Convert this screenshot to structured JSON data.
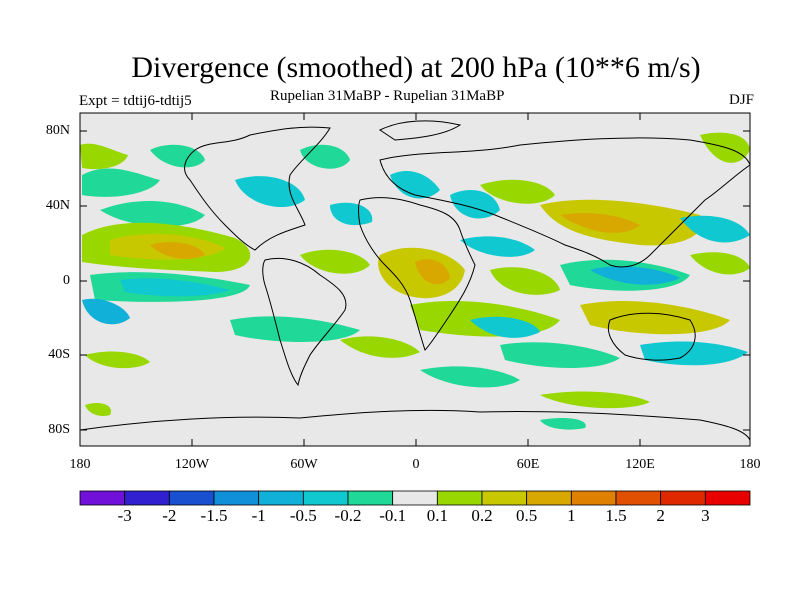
{
  "title": "Divergence (smoothed) at 200 hPa (10**6 m/s)",
  "subtitle": "Rupelian  31MaBP - Rupelian  31MaBP",
  "experiment": "Expt = tdtij6-tdtij5",
  "season": "DJF",
  "lat_labels": [
    "80N",
    "40N",
    "0",
    "40S",
    "80S"
  ],
  "lon_labels": [
    "180",
    "120W",
    "60W",
    "0",
    "60E",
    "120E",
    "180"
  ],
  "colorbar": {
    "labels": [
      "-3",
      "-2",
      "-1.5",
      "-1",
      "-0.5",
      "-0.2",
      "-0.1",
      "0.1",
      "0.2",
      "0.5",
      "1",
      "1.5",
      "2",
      "3"
    ],
    "colors": [
      "#7010d8",
      "#3020d0",
      "#1850d0",
      "#1090d8",
      "#10b0d8",
      "#10c8d0",
      "#20d898",
      "#e8e8e8",
      "#98d800",
      "#c8c800",
      "#d8a800",
      "#e08000",
      "#e05000",
      "#e02800",
      "#e80000"
    ]
  },
  "map": {
    "background": "#e8e8e8",
    "features": [
      "continent outlines",
      "divergence color-filled contours"
    ]
  }
}
